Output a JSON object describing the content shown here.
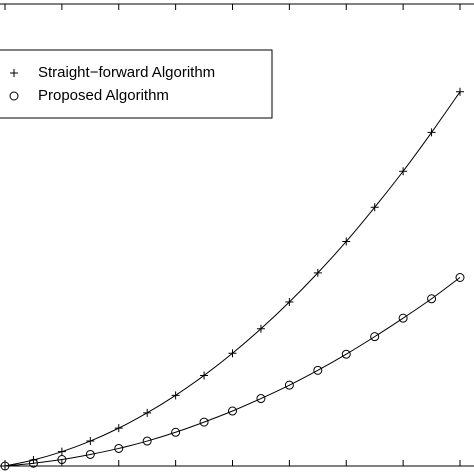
{
  "chart_data": {
    "type": "line",
    "x": [
      0,
      1,
      2,
      3,
      4,
      5,
      6,
      7,
      8,
      9,
      10,
      11,
      12,
      13,
      14,
      15,
      16
    ],
    "series": [
      {
        "name": "Straight−forward Algorithm",
        "color": "#000000",
        "marker": "+",
        "values": [
          0,
          1.3,
          3.1,
          5.4,
          8.2,
          11.5,
          15.3,
          19.6,
          24.4,
          29.7,
          35.5,
          41.8,
          48.6,
          56.0,
          63.8,
          72.2,
          81.0
        ]
      },
      {
        "name": "Proposed Algorithm",
        "color": "#000000",
        "marker": "o",
        "values": [
          0,
          0.6,
          1.4,
          2.5,
          3.8,
          5.4,
          7.3,
          9.5,
          11.9,
          14.6,
          17.5,
          20.7,
          24.2,
          28.0,
          32.0,
          36.2,
          40.8
        ]
      }
    ],
    "xlim": [
      0,
      16
    ],
    "xticks": [
      0,
      2,
      4,
      6,
      8,
      10,
      12,
      14,
      16
    ],
    "ylim": [
      0,
      100
    ],
    "legend": "upper left"
  }
}
